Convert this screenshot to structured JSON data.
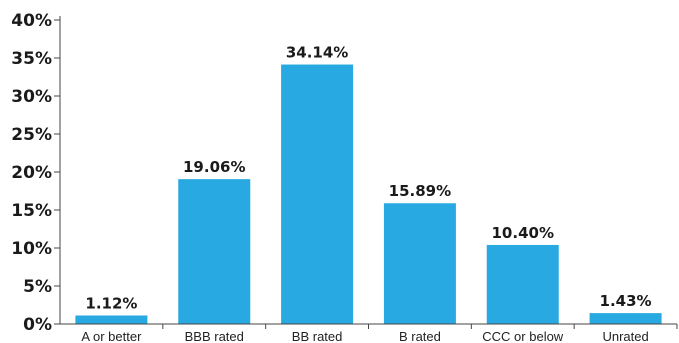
{
  "chart_data": {
    "type": "bar",
    "categories": [
      "A or better",
      "BBB rated",
      "BB rated",
      "B rated",
      "CCC or below",
      "Unrated"
    ],
    "values": [
      1.12,
      19.06,
      34.14,
      15.89,
      10.4,
      1.43
    ],
    "data_labels": [
      "1.12%",
      "19.06%",
      "34.14%",
      "15.89%",
      "10.40%",
      "1.43%"
    ],
    "yticks": [
      0,
      5,
      10,
      15,
      20,
      25,
      30,
      35,
      40
    ],
    "ytick_labels": [
      "0%",
      "5%",
      "10%",
      "15%",
      "20%",
      "25%",
      "30%",
      "35%",
      "40%"
    ],
    "ylim": [
      0,
      40
    ],
    "title": "",
    "xlabel": "",
    "ylabel": "",
    "grid": false,
    "bar_color": "#29a9e1"
  }
}
